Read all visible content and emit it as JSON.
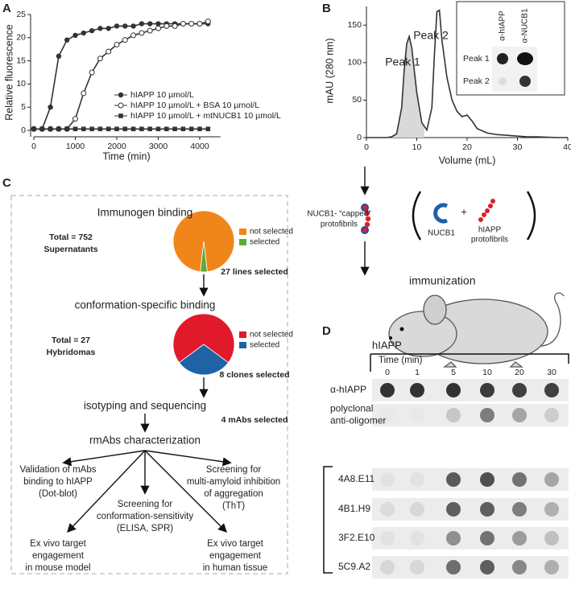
{
  "chart_data": [
    {
      "type": "line",
      "panel": "A",
      "xlabel": "Time (min)",
      "ylabel": "Relative fluorescence",
      "x": [
        0,
        200,
        400,
        600,
        800,
        1000,
        1200,
        1400,
        1600,
        1800,
        2000,
        2200,
        2400,
        2600,
        2800,
        3000,
        3200,
        3400,
        3600,
        3800,
        4000,
        4200
      ],
      "series": [
        {
          "name": "hIAPP 10 µmol/L",
          "color": "#333333",
          "marker": "circle",
          "values": [
            0.3,
            0.3,
            5,
            16,
            19.5,
            20.5,
            21,
            21.5,
            22,
            22,
            22.5,
            22.5,
            22.5,
            23,
            23,
            23,
            23,
            23,
            23,
            23,
            23,
            23
          ]
        },
        {
          "name": "hIAPP 10 µmol/L + BSA 10 µmol/L",
          "color": "#333333",
          "marker": "open-circle",
          "values": [
            0.3,
            0.3,
            0.3,
            0.3,
            0.3,
            2.5,
            8,
            12.5,
            15.5,
            17,
            18.5,
            19.5,
            20.5,
            21,
            21.5,
            22,
            22.5,
            22.5,
            23,
            23,
            23,
            23.5
          ]
        },
        {
          "name": "hIAPP 10 µmol/L + mtNUCB1 10 µmol/L",
          "color": "#333333",
          "marker": "square",
          "values": [
            0.3,
            0.3,
            0.3,
            0.3,
            0.3,
            0.3,
            0.3,
            0.3,
            0.3,
            0.3,
            0.3,
            0.3,
            0.3,
            0.3,
            0.3,
            0.3,
            0.3,
            0.3,
            0.3,
            0.3,
            0.3,
            0.3
          ]
        }
      ],
      "xlim": [
        0,
        4500
      ],
      "xticks": [
        0,
        1000,
        2000,
        3000,
        4000
      ],
      "ylim": [
        0,
        25
      ],
      "yticks": [
        0,
        5,
        10,
        15,
        20,
        25
      ]
    },
    {
      "type": "line",
      "panel": "B",
      "xlabel": "Volume (mL)",
      "ylabel": "mAU (280 nm)",
      "x": [
        0,
        2,
        4,
        5,
        6,
        7,
        7.5,
        8,
        8.5,
        9,
        10,
        11,
        12,
        13,
        13.5,
        14,
        14.5,
        15,
        16,
        17,
        18,
        19,
        20,
        21,
        22,
        24,
        26,
        28,
        30,
        32,
        34,
        36,
        38,
        40
      ],
      "values": [
        0,
        0,
        0,
        1,
        5,
        40,
        90,
        125,
        135,
        120,
        60,
        20,
        10,
        40,
        110,
        168,
        170,
        130,
        80,
        50,
        35,
        28,
        30,
        22,
        12,
        6,
        4,
        3,
        2,
        1,
        1,
        0.5,
        0,
        0
      ],
      "color": "#333333",
      "shade_color": "#d9d9d9",
      "shade_xmax": 11.5,
      "annotations": [
        "Peak 1",
        "Peak 2"
      ],
      "xlim": [
        0,
        40
      ],
      "xticks": [
        0,
        10,
        20,
        30,
        40
      ],
      "ylim": [
        0,
        175
      ],
      "yticks": [
        0,
        50,
        100,
        150
      ]
    },
    {
      "type": "pie",
      "title": "Immunogen binding",
      "total_label": [
        "Total = 752",
        "Supernatants"
      ],
      "categories": [
        "not selected",
        "selected"
      ],
      "values": [
        725,
        27
      ],
      "colors": [
        "#f0861a",
        "#5aab35"
      ],
      "note": "27 lines selected"
    },
    {
      "type": "pie",
      "title": "conformation-specific binding",
      "total_label": [
        "Total = 27",
        "Hybridomas"
      ],
      "categories": [
        "not selected",
        "selected"
      ],
      "values": [
        19,
        8
      ],
      "colors": [
        "#e0192b",
        "#1f63a6"
      ],
      "note": "8 clones selected"
    }
  ],
  "scheme": {
    "inset_columns": [
      "α-hIAPP",
      "α-NUCB1"
    ],
    "inset_rows": [
      "Peak 1",
      "Peak 2"
    ],
    "capped": [
      "NUCB1- “capped”",
      "protofibrils"
    ],
    "nucb1": "NUCB1",
    "plus": "+",
    "protofibrils": [
      "hIAPP",
      "protofibrils"
    ],
    "immunization": "immunization"
  },
  "panel_c": {
    "label": "C",
    "steps": [
      "isotyping and sequencing",
      "rmAbs characterization"
    ],
    "mabs": "4 mAbs selected",
    "branches": [
      [
        "Validation of mAbs",
        "binding to hIAPP",
        "(Dot-blot)"
      ],
      [
        "Screening for",
        "conformation-sensitivity",
        "(ELISA, SPR)"
      ],
      [
        "Screening for",
        "multi-amyloid inhibition",
        "of aggregation",
        "(ThT)"
      ],
      [
        "Ex vivo target",
        "engagement",
        "in mouse model"
      ],
      [
        "Ex vivo target",
        "engagement",
        "in human tissue"
      ]
    ]
  },
  "blot": {
    "label": "D",
    "title": "hIAPP",
    "time_label": "Time (min)",
    "times": [
      0,
      1,
      5,
      10,
      20,
      30
    ],
    "rows": [
      [
        "α-hIAPP"
      ],
      [
        "polyclonal",
        "anti-oligomer"
      ],
      [
        "4A8.E11"
      ],
      [
        "4B1.H9"
      ],
      [
        "3F2.E10"
      ],
      [
        "5C9.A2"
      ]
    ]
  }
}
